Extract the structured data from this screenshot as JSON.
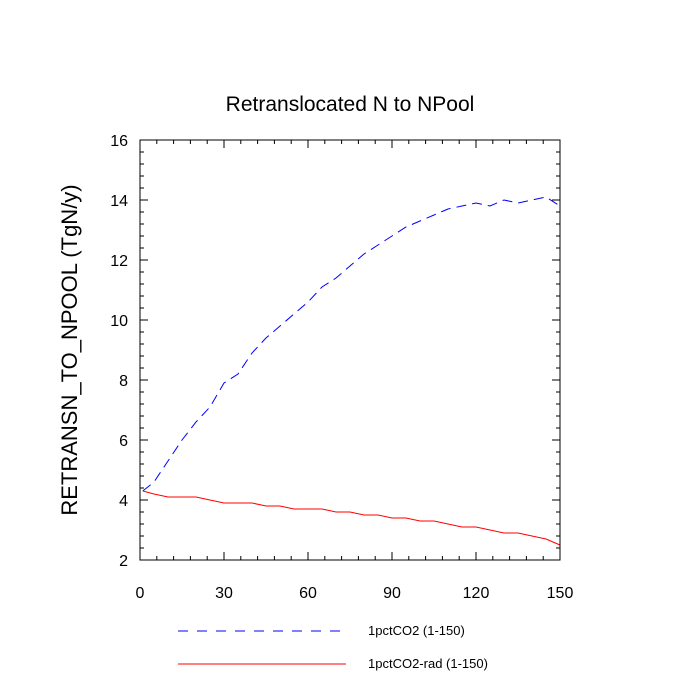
{
  "chart_data": {
    "type": "line",
    "title": "Retranslocated N to NPool",
    "ylabel": "RETRANSN_TO_NPOOL  (TgN/y)",
    "xlabel": "",
    "xlim": [
      0,
      150
    ],
    "ylim": [
      2,
      16
    ],
    "xticks": [
      0,
      30,
      60,
      90,
      120,
      150
    ],
    "yticks": [
      2,
      4,
      6,
      8,
      10,
      12,
      14,
      16
    ],
    "x_tick_labels": [
      "0",
      "30",
      "60",
      "90",
      "120",
      "150"
    ],
    "y_tick_labels": [
      "2",
      "4",
      "6",
      "8",
      "10",
      "12",
      "14",
      "16"
    ],
    "grid": false,
    "legend_position": "bottom",
    "series": [
      {
        "name": "1pctCO2 (1-150)",
        "color": "#0000ff",
        "dash": "dashed",
        "x": [
          1,
          5,
          10,
          15,
          20,
          25,
          30,
          35,
          40,
          45,
          50,
          55,
          60,
          65,
          70,
          75,
          80,
          85,
          90,
          95,
          100,
          105,
          110,
          115,
          120,
          125,
          130,
          135,
          140,
          145,
          150
        ],
        "values": [
          4.3,
          4.6,
          5.3,
          6.0,
          6.6,
          7.1,
          7.9,
          8.2,
          8.9,
          9.4,
          9.8,
          10.2,
          10.6,
          11.1,
          11.4,
          11.8,
          12.2,
          12.5,
          12.8,
          13.1,
          13.3,
          13.5,
          13.7,
          13.8,
          13.9,
          13.8,
          14.0,
          13.9,
          14.0,
          14.1,
          13.8
        ]
      },
      {
        "name": "1pctCO2-rad (1-150)",
        "color": "#ff0000",
        "dash": "solid",
        "x": [
          1,
          5,
          10,
          15,
          20,
          25,
          30,
          35,
          40,
          45,
          50,
          55,
          60,
          65,
          70,
          75,
          80,
          85,
          90,
          95,
          100,
          105,
          110,
          115,
          120,
          125,
          130,
          135,
          140,
          145,
          150
        ],
        "values": [
          4.3,
          4.2,
          4.1,
          4.1,
          4.1,
          4.0,
          3.9,
          3.9,
          3.9,
          3.8,
          3.8,
          3.7,
          3.7,
          3.7,
          3.6,
          3.6,
          3.5,
          3.5,
          3.4,
          3.4,
          3.3,
          3.3,
          3.2,
          3.1,
          3.1,
          3.0,
          2.9,
          2.9,
          2.8,
          2.7,
          2.5
        ]
      }
    ]
  }
}
